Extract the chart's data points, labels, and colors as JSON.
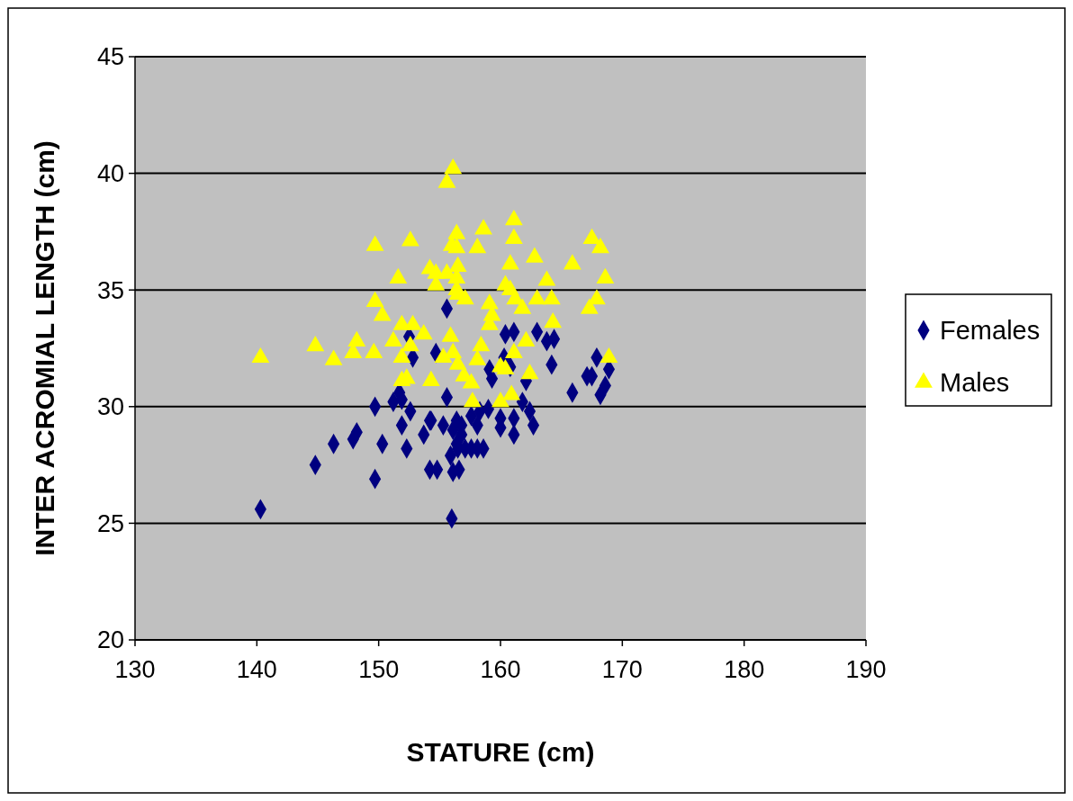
{
  "chart_data": {
    "type": "scatter",
    "xlabel": "STATURE (cm)",
    "ylabel": "INTER ACROMIAL LENGTH (cm)",
    "xlim": [
      130,
      190
    ],
    "xticks": [
      130,
      140,
      150,
      160,
      170,
      180,
      190
    ],
    "ylim": [
      20,
      45
    ],
    "yticks": [
      20,
      25,
      30,
      35,
      40,
      45
    ],
    "grid": "y",
    "legend": "right",
    "series": [
      {
        "name": "Females",
        "color": "#000080",
        "marker": "diamond",
        "x": [
          140.3,
          144.8,
          146.3,
          147.9,
          148.2,
          149.7,
          149.7,
          150.3,
          151.2,
          151.7,
          151.9,
          151.9,
          152.3,
          152.5,
          152.6,
          152.8,
          153.7,
          154.2,
          154.2,
          154.7,
          154.8,
          155.6,
          154.3,
          155.3,
          160.4,
          161.1,
          163.0,
          163.8,
          164.4,
          160.3,
          160.8,
          159.1,
          159.3,
          162.1,
          164.2,
          167.9,
          168.9,
          167.5,
          167.1,
          168.6,
          168.2,
          165.9,
          155.6,
          161.8,
          162.4,
          162.7,
          161.1,
          161.1,
          160.0,
          160.0,
          159.0,
          158.3,
          157.6,
          158.1,
          156.4,
          156.8,
          156.1,
          156.8,
          156.4,
          155.9,
          157.1,
          157.6,
          158.1,
          158.6,
          156.5,
          156.1,
          156.6,
          156.0
        ],
        "values": [
          25.6,
          27.5,
          28.4,
          28.6,
          28.9,
          30.0,
          26.9,
          28.4,
          30.2,
          30.6,
          30.3,
          29.2,
          28.2,
          33.0,
          29.8,
          32.1,
          28.8,
          29.4,
          27.3,
          32.3,
          27.3,
          34.2,
          29.4,
          29.2,
          33.1,
          33.2,
          33.2,
          32.8,
          32.9,
          32.1,
          31.7,
          31.6,
          31.2,
          31.1,
          31.8,
          32.1,
          31.6,
          31.3,
          31.3,
          30.9,
          30.5,
          30.6,
          30.4,
          30.2,
          29.8,
          29.2,
          29.5,
          28.8,
          29.5,
          29.1,
          29.9,
          29.8,
          29.6,
          29.2,
          29.4,
          29.2,
          29.0,
          28.8,
          28.4,
          27.9,
          28.2,
          28.2,
          28.2,
          28.2,
          28.2,
          27.2,
          27.3,
          25.2
        ]
      },
      {
        "name": "Males",
        "color": "#ffff00",
        "marker": "triangle",
        "x": [
          140.3,
          144.8,
          146.3,
          147.9,
          148.2,
          149.6,
          149.7,
          152.6,
          151.6,
          149.7,
          150.3,
          151.9,
          152.8,
          153.7,
          151.2,
          152.6,
          151.9,
          151.9,
          152.3,
          154.3,
          154.2,
          154.7,
          154.7,
          156.1,
          155.6,
          161.1,
          156.4,
          156.0,
          156.4,
          158.6,
          158.1,
          161.1,
          167.5,
          168.2,
          162.8,
          165.9,
          160.8,
          155.6,
          156.5,
          156.4,
          156.4,
          156.5,
          157.1,
          160.4,
          160.8,
          161.2,
          163.8,
          163.0,
          164.2,
          168.6,
          167.9,
          167.3,
          161.8,
          159.1,
          159.3,
          159.1,
          164.3,
          155.9,
          158.4,
          162.1,
          155.3,
          156.1,
          156.5,
          157.0,
          157.6,
          158.1,
          160.0,
          160.4,
          161.1,
          162.4,
          168.9,
          157.7,
          160.0,
          160.9
        ],
        "values": [
          32.1,
          32.6,
          32.0,
          32.3,
          32.8,
          32.3,
          36.9,
          37.1,
          35.5,
          34.5,
          33.9,
          33.5,
          33.5,
          33.1,
          32.8,
          32.6,
          32.1,
          31.1,
          31.2,
          31.1,
          35.9,
          35.7,
          35.2,
          40.2,
          39.6,
          38.0,
          37.4,
          36.9,
          36.8,
          37.6,
          36.8,
          37.2,
          37.2,
          36.8,
          36.4,
          36.1,
          36.1,
          35.7,
          36.0,
          35.5,
          35.0,
          34.8,
          34.6,
          35.2,
          35.0,
          34.6,
          35.4,
          34.6,
          34.6,
          35.5,
          34.6,
          34.2,
          34.2,
          34.4,
          33.9,
          33.5,
          33.6,
          33.0,
          32.6,
          32.8,
          32.1,
          32.3,
          31.8,
          31.3,
          31.0,
          32.0,
          31.7,
          31.6,
          32.3,
          31.4,
          32.1,
          30.2,
          30.2,
          30.5
        ]
      }
    ]
  }
}
